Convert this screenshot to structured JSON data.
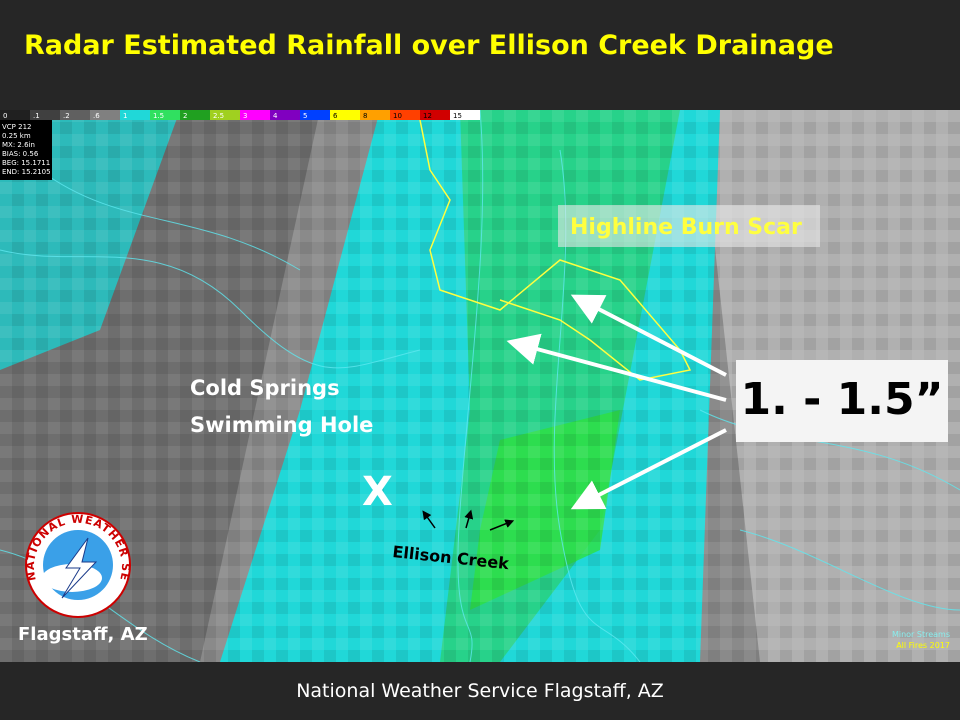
{
  "header": {
    "title": "Radar Estimated Rainfall over Ellison Creek Drainage"
  },
  "legend": {
    "labels": [
      "0",
      ".1",
      ".2",
      ".6",
      "1",
      "1.5",
      "2",
      "2.5",
      "3",
      "4",
      "5",
      "6",
      "8",
      "10",
      "12",
      "15"
    ]
  },
  "radar_info": [
    "VCP 212",
    "0.25 km",
    "MX: 2.6in",
    "BIAS: 0.56",
    "BEG: 15.1711",
    "END: 15.2105"
  ],
  "map": {
    "burn_scar_label": "Highline Burn Scar",
    "amount_label": "1. - 1.5”",
    "place_label": [
      "Cold Springs",
      "Swimming Hole"
    ],
    "place_marker": "X",
    "creek_label": "Ellison Creek",
    "overlay_legend": [
      "Minor Streams",
      "All Fires 2017"
    ]
  },
  "logo": {
    "ring_text": "NATIONAL WEATHER SERVICE",
    "office": "Flagstaff, AZ"
  },
  "footer": {
    "text": "National Weather Service Flagstaff, AZ"
  }
}
